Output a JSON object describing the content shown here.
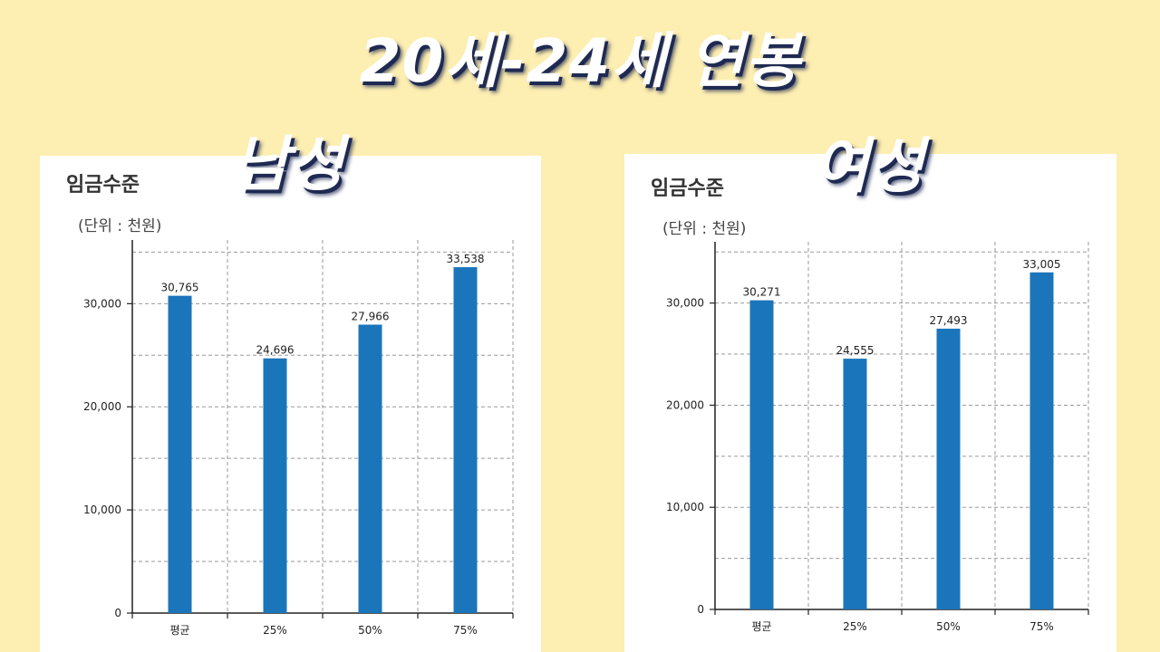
{
  "main_title": "20세-24세 연봉",
  "charts": [
    {
      "gender_label": "남성",
      "title": "임금수준",
      "unit": "(단위 : 천원)",
      "chart_data": {
        "type": "bar",
        "categories": [
          "평균",
          "25%",
          "50%",
          "75%"
        ],
        "values": [
          30765,
          24696,
          27966,
          33538
        ],
        "value_labels": [
          "30,765",
          "24,696",
          "27,966",
          "33,538"
        ],
        "yticks": [
          0,
          10000,
          20000,
          30000
        ],
        "ytick_labels": [
          "0",
          "10,000",
          "20,000",
          "30,000"
        ],
        "ylim": [
          0,
          36000
        ],
        "grid": true,
        "bar_color": "#1b75bb"
      }
    },
    {
      "gender_label": "여성",
      "title": "임금수준",
      "unit": "(단위 : 천원)",
      "chart_data": {
        "type": "bar",
        "categories": [
          "평균",
          "25%",
          "50%",
          "75%"
        ],
        "values": [
          30271,
          24555,
          27493,
          33005
        ],
        "value_labels": [
          "30,271",
          "24,555",
          "27,493",
          "33,005"
        ],
        "yticks": [
          0,
          10000,
          20000,
          30000
        ],
        "ytick_labels": [
          "0",
          "10,000",
          "20,000",
          "30,000"
        ],
        "ylim": [
          0,
          36000
        ],
        "grid": true,
        "bar_color": "#1b75bb"
      }
    }
  ]
}
